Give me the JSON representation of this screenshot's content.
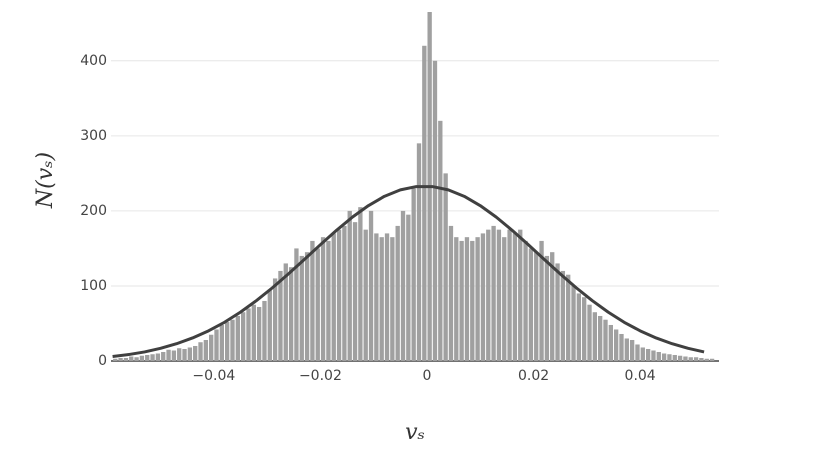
{
  "chart_data": {
    "type": "histogram",
    "xlabel": "vₛ",
    "ylabel": "N(vₛ)",
    "bins": [
      -0.059,
      -0.058,
      -0.057,
      -0.056,
      -0.055,
      -0.054,
      -0.053,
      -0.052,
      -0.051,
      -0.05,
      -0.049,
      -0.048,
      -0.047,
      -0.046,
      -0.045,
      -0.044,
      -0.043,
      -0.042,
      -0.041,
      -0.04,
      -0.039,
      -0.038,
      -0.037,
      -0.036,
      -0.035,
      -0.034,
      -0.033,
      -0.032,
      -0.031,
      -0.03,
      -0.029,
      -0.028,
      -0.027,
      -0.026,
      -0.025,
      -0.024,
      -0.023,
      -0.022,
      -0.021,
      -0.02,
      -0.019,
      -0.018,
      -0.017,
      -0.016,
      -0.015,
      -0.014,
      -0.013,
      -0.012,
      -0.011,
      -0.01,
      -0.009,
      -0.008,
      -0.007,
      -0.006,
      -0.005,
      -0.004,
      -0.003,
      -0.002,
      -0.001,
      0,
      0.001,
      0.002,
      0.003,
      0.004,
      0.005,
      0.006,
      0.007,
      0.008,
      0.009,
      0.01,
      0.011,
      0.012,
      0.013,
      0.014,
      0.015,
      0.016,
      0.017,
      0.018,
      0.019,
      0.02,
      0.021,
      0.022,
      0.023,
      0.024,
      0.025,
      0.026,
      0.027,
      0.028,
      0.029,
      0.03,
      0.031,
      0.032,
      0.033,
      0.034,
      0.035,
      0.036,
      0.037,
      0.038,
      0.039,
      0.04,
      0.041,
      0.042,
      0.043,
      0.044,
      0.045,
      0.046,
      0.047,
      0.048,
      0.049,
      0.05,
      0.051,
      0.052,
      0.053,
      0.054
    ],
    "values": [
      3,
      4,
      4,
      6,
      5,
      7,
      8,
      9,
      10,
      12,
      15,
      14,
      17,
      16,
      18,
      20,
      25,
      28,
      35,
      42,
      48,
      52,
      55,
      60,
      65,
      70,
      75,
      72,
      80,
      95,
      110,
      120,
      130,
      125,
      150,
      140,
      145,
      160,
      150,
      165,
      160,
      170,
      175,
      180,
      200,
      185,
      205,
      175,
      200,
      170,
      165,
      170,
      165,
      180,
      200,
      195,
      230,
      290,
      420,
      465,
      400,
      320,
      250,
      180,
      165,
      160,
      165,
      160,
      165,
      170,
      175,
      180,
      175,
      165,
      175,
      170,
      175,
      160,
      150,
      145,
      160,
      140,
      145,
      130,
      120,
      115,
      100,
      90,
      85,
      75,
      65,
      60,
      55,
      48,
      42,
      36,
      30,
      28,
      22,
      18,
      16,
      14,
      12,
      10,
      9,
      8,
      7,
      6,
      5,
      5,
      4,
      3,
      3
    ],
    "color": "#a0a0a0",
    "fit": {
      "color": "#404040",
      "x": [
        -0.059,
        -0.056,
        -0.053,
        -0.05,
        -0.047,
        -0.044,
        -0.041,
        -0.038,
        -0.035,
        -0.032,
        -0.029,
        -0.026,
        -0.023,
        -0.02,
        -0.017,
        -0.014,
        -0.011,
        -0.008,
        -0.005,
        -0.002,
        0.001,
        0.004,
        0.007,
        0.01,
        0.013,
        0.016,
        0.019,
        0.022,
        0.025,
        0.028,
        0.031,
        0.034,
        0.037,
        0.04,
        0.043,
        0.046,
        0.049,
        0.052
      ],
      "values": [
        6.0,
        8.6,
        12.1,
        16.9,
        23.0,
        30.7,
        40.2,
        51.6,
        65.1,
        80.5,
        97.6,
        116.1,
        135.4,
        155.0,
        174.0,
        191.7,
        207.0,
        219.4,
        228.0,
        232.4,
        232.4,
        228.0,
        219.4,
        207.0,
        191.7,
        174.0,
        155.0,
        135.4,
        116.1,
        97.6,
        80.5,
        65.1,
        51.6,
        40.2,
        30.7,
        23.0,
        16.9,
        12.1
      ]
    },
    "xlim": [
      -0.0593,
      0.0548
    ],
    "ylim": [
      0,
      481
    ],
    "xticks": [
      {
        "value": -0.04,
        "label": "−0.04"
      },
      {
        "value": -0.02,
        "label": "−0.02"
      },
      0,
      0.02,
      0.04
    ],
    "yticks": [
      0,
      100,
      200,
      300,
      400
    ],
    "grid": true
  }
}
